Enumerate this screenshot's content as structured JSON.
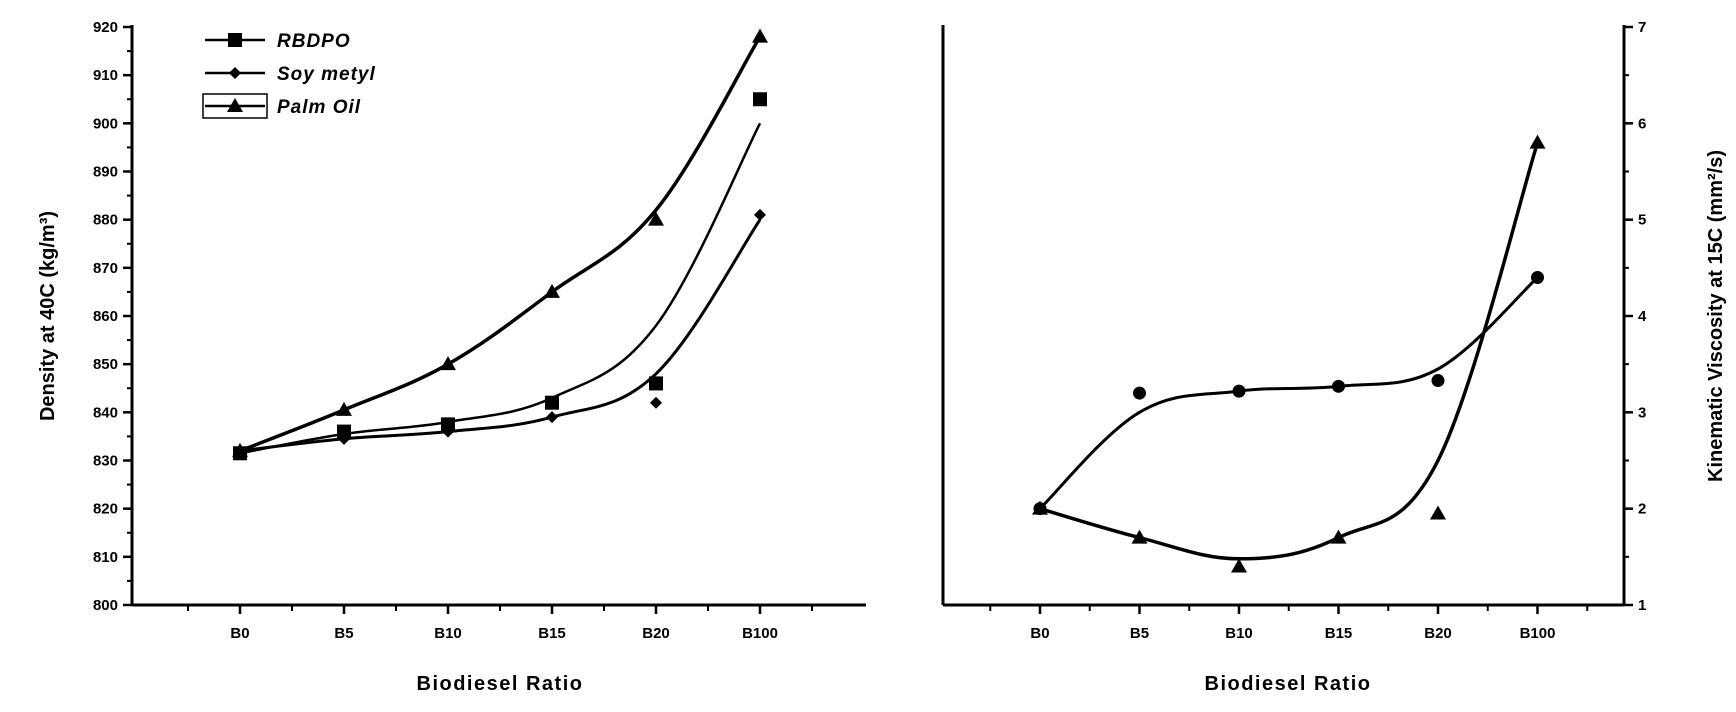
{
  "chart_data": [
    {
      "type": "line",
      "categories": [
        "B0",
        "B5",
        "B10",
        "B15",
        "B20",
        "B100"
      ],
      "xlabel": "Biodiesel Ratio",
      "ylabel": "Density at 40C (kg/m³)",
      "ylim": [
        800,
        920
      ],
      "yticks": [
        800,
        810,
        820,
        830,
        840,
        850,
        860,
        870,
        880,
        890,
        900,
        910,
        920
      ],
      "grid": false,
      "legend_position": "top-left",
      "series": [
        {
          "name": "RBDPO",
          "marker": "square",
          "values": [
            831.5,
            836,
            837.5,
            842,
            846,
            905
          ],
          "curve": [
            831.5,
            835.5,
            838,
            843,
            858,
            900
          ]
        },
        {
          "name": "Soy metyl",
          "marker": "diamond",
          "values": [
            832,
            834.5,
            836,
            839,
            842,
            881
          ],
          "curve": [
            832,
            834.5,
            836,
            839,
            848,
            880
          ]
        },
        {
          "name": "Palm Oil",
          "marker": "triangle",
          "values": [
            832,
            840.5,
            850,
            865,
            880,
            918
          ],
          "curve": [
            832,
            840.5,
            850,
            865,
            882,
            918
          ]
        }
      ]
    },
    {
      "type": "line",
      "categories": [
        "B0",
        "B5",
        "B10",
        "B15",
        "B20",
        "B100"
      ],
      "xlabel": "Biodiesel Ratio",
      "ylabel": "Kinematic Viscosity at 15C (mm²/s)",
      "ylim": [
        1,
        7
      ],
      "yticks": [
        1,
        2,
        3,
        4,
        5,
        6,
        7
      ],
      "yaxis_side": "right",
      "grid": false,
      "series": [
        {
          "marker": "circle",
          "values": [
            2.0,
            3.2,
            3.22,
            3.27,
            3.33,
            4.4
          ],
          "curve": [
            2.0,
            3.0,
            3.22,
            3.27,
            3.45,
            4.4
          ]
        },
        {
          "marker": "triangle",
          "values": [
            2.0,
            1.7,
            1.4,
            1.7,
            1.95,
            5.8
          ],
          "curve": [
            2.0,
            1.7,
            1.48,
            1.7,
            2.5,
            5.8
          ]
        }
      ]
    }
  ]
}
